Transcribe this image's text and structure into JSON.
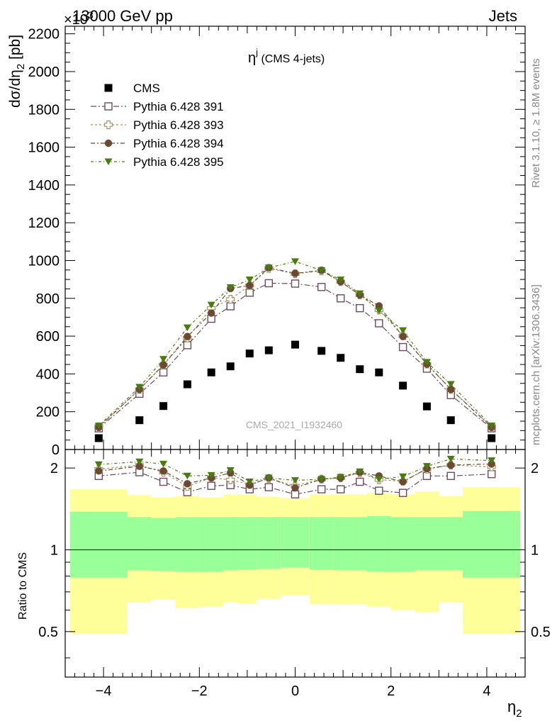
{
  "header": {
    "left": "13000 GeV pp",
    "right": "Jets"
  },
  "side_text": {
    "top": "Rivet 3.1.10, ≥ 1.8M events",
    "bottom": "mcplots.cern.ch [arXiv:1306.3436]"
  },
  "watermark": "CMS_2021_I1932460",
  "colors": {
    "cms": "#000000",
    "p391": "#6e4a5c",
    "p393": "#a39467",
    "p394": "#6a4a32",
    "p395": "#4a7a12",
    "band_inner": "#99ff99",
    "band_outer": "#ffff99"
  },
  "chart_data": [
    {
      "type": "scatter",
      "title_main": "η",
      "title_sup": "j",
      "title_rest": " (CMS 4-jets)",
      "ylabel": "dσ/dη",
      "ylabel_sub": "2",
      "ylabel_unit": " [pb]",
      "exponent_label": "×10",
      "exponent_sup": "3",
      "ylim": [
        0,
        2240
      ],
      "yticks": [
        0,
        200,
        400,
        600,
        800,
        1000,
        1200,
        1400,
        1600,
        1800,
        2000,
        2200
      ],
      "x": [
        -4.1,
        -3.25,
        -2.75,
        -2.25,
        -1.75,
        -1.35,
        -0.95,
        -0.55,
        0.0,
        0.55,
        0.95,
        1.35,
        1.75,
        2.25,
        2.75,
        3.25,
        4.1
      ],
      "series": [
        {
          "name": "CMS",
          "marker": "filled-square",
          "values": [
            60,
            155,
            230,
            345,
            408,
            440,
            508,
            525,
            555,
            522,
            485,
            425,
            408,
            338,
            228,
            155,
            60
          ]
        },
        {
          "name": "Pythia 6.428 391",
          "marker": "open-square",
          "values": [
            112,
            295,
            408,
            552,
            692,
            758,
            830,
            880,
            878,
            860,
            800,
            748,
            668,
            542,
            428,
            288,
            112
          ]
        },
        {
          "name": "Pythia 6.428 393",
          "marker": "open-cross",
          "values": [
            120,
            318,
            448,
            590,
            748,
            795,
            868,
            958,
            930,
            945,
            888,
            818,
            738,
            602,
            452,
            318,
            120
          ]
        },
        {
          "name": "Pythia 6.428 394",
          "marker": "filled-circle",
          "values": [
            118,
            318,
            448,
            598,
            722,
            852,
            868,
            962,
            932,
            948,
            888,
            818,
            760,
            598,
            452,
            318,
            118
          ]
        },
        {
          "name": "Pythia 6.428 395",
          "marker": "filled-triangle-down",
          "values": [
            125,
            330,
            478,
            645,
            765,
            858,
            898,
            962,
            995,
            948,
            898,
            825,
            735,
            630,
            462,
            345,
            125
          ]
        }
      ]
    },
    {
      "type": "scatter",
      "xlabel": "η",
      "xlabel_sub": "2",
      "ylabel": "Ratio to CMS",
      "xlim": [
        -4.8,
        4.8
      ],
      "xticks": [
        -4,
        -2,
        0,
        2,
        4
      ],
      "ylim": [
        0.34,
        2.34
      ],
      "yticks": [
        0.5,
        1,
        2
      ],
      "bin_edges": [
        -4.7,
        -3.5,
        -3.0,
        -2.5,
        -2.0,
        -1.5,
        -1.2,
        -0.8,
        -0.3,
        0.3,
        0.8,
        1.2,
        1.5,
        2.0,
        2.5,
        3.0,
        3.5,
        4.7
      ],
      "band_inner": {
        "lower": [
          0.79,
          0.84,
          0.835,
          0.83,
          0.83,
          0.84,
          0.845,
          0.85,
          0.86,
          0.845,
          0.84,
          0.84,
          0.83,
          0.83,
          0.84,
          0.84,
          0.79
        ],
        "upper": [
          1.38,
          1.32,
          1.31,
          1.32,
          1.32,
          1.32,
          1.32,
          1.32,
          1.32,
          1.32,
          1.32,
          1.32,
          1.33,
          1.32,
          1.32,
          1.32,
          1.39
        ]
      },
      "band_outer": {
        "lower": [
          0.49,
          0.64,
          0.655,
          0.61,
          0.62,
          0.64,
          0.635,
          0.66,
          0.68,
          0.63,
          0.63,
          0.63,
          0.62,
          0.6,
          0.59,
          0.64,
          0.49
        ],
        "upper": [
          1.67,
          1.59,
          1.56,
          1.58,
          1.56,
          1.6,
          1.6,
          1.57,
          1.55,
          1.6,
          1.6,
          1.6,
          1.62,
          1.6,
          1.64,
          1.58,
          1.7
        ]
      },
      "series": [
        {
          "name": "Pythia 6.428 391",
          "marker": "open-square",
          "values": [
            1.87,
            1.93,
            1.78,
            1.63,
            1.72,
            1.73,
            1.67,
            1.7,
            1.6,
            1.67,
            1.67,
            1.78,
            1.65,
            1.62,
            1.87,
            1.87,
            1.9
          ]
        },
        {
          "name": "Pythia 6.428 393",
          "marker": "open-cross",
          "values": [
            1.98,
            2.05,
            1.93,
            1.71,
            1.84,
            1.81,
            1.74,
            1.83,
            1.72,
            1.82,
            1.84,
            1.92,
            1.81,
            1.79,
            1.98,
            2.05,
            2.02
          ]
        },
        {
          "name": "Pythia 6.428 394",
          "marker": "filled-circle",
          "values": [
            1.95,
            2.03,
            1.95,
            1.75,
            1.84,
            1.92,
            1.73,
            1.84,
            1.69,
            1.82,
            1.84,
            1.93,
            1.87,
            1.78,
            1.99,
            2.05,
            2.07
          ]
        },
        {
          "name": "Pythia 6.428 395",
          "marker": "filled-triangle-down",
          "values": [
            2.06,
            2.11,
            2.07,
            1.87,
            1.88,
            1.96,
            1.78,
            1.84,
            1.8,
            1.82,
            1.85,
            1.94,
            1.82,
            1.86,
            2.03,
            2.16,
            2.13
          ]
        }
      ]
    }
  ]
}
